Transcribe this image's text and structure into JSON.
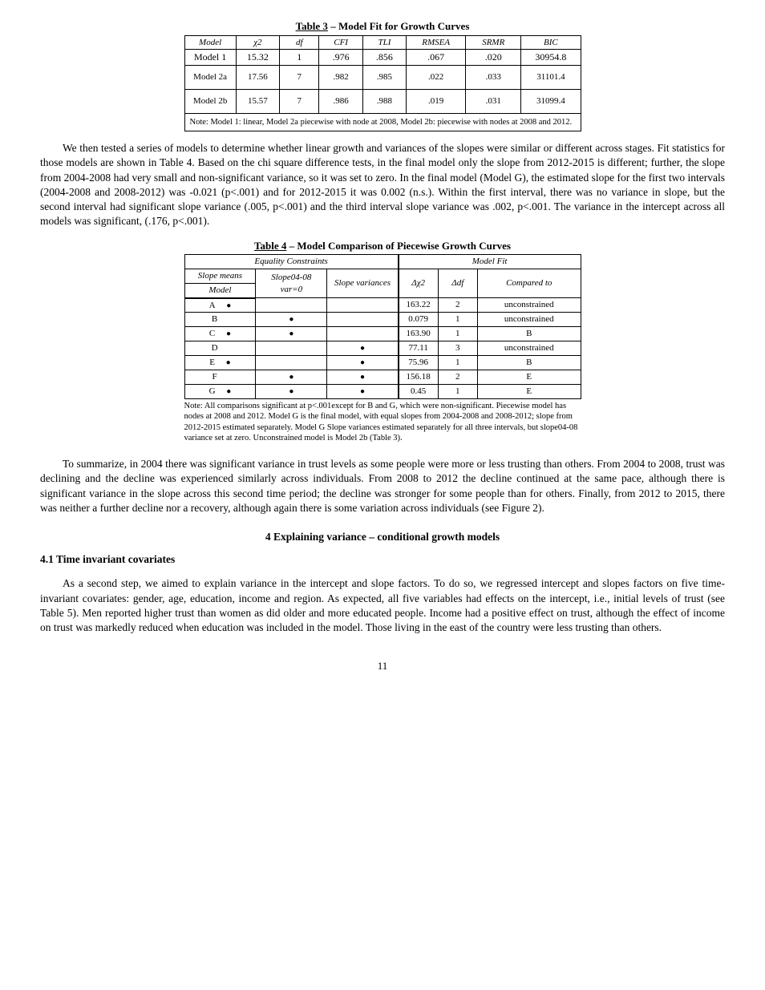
{
  "table3": {
    "title_prefix": "Table 3",
    "title_rest": " – Model Fit for Growth Curves",
    "header_row": [
      "Model",
      "χ2",
      "df",
      "CFI",
      "TLI",
      "RMSEA",
      "SRMR",
      "BIC"
    ],
    "row1": [
      "Model 1",
      "15.32",
      "1",
      ".976",
      ".856",
      ".067",
      ".020",
      "30954.8"
    ],
    "row2": [
      "Model 2a",
      "17.56",
      "7",
      ".982",
      ".985",
      ".022",
      ".033",
      "31101.4"
    ],
    "row3": [
      "Model 2b",
      "15.57",
      "7",
      ".986",
      ".988",
      ".019",
      ".031",
      "31099.4"
    ],
    "note": "Note: Model 1: linear, Model 2a piecewise with node at 2008, Model 2b: piecewise with nodes at 2008 and 2012."
  },
  "para1": "We then tested a series of models to determine whether linear growth and variances of the slopes were similar or different across stages. Fit statistics for those models are shown in Table 4. Based on the chi square difference tests, in the final model only the slope from 2012-2015 is different; further, the slope from 2004-2008 had very small and non-significant variance, so it was set to zero. In the final model (Model G), the estimated slope for the first two intervals (2004-2008 and 2008-2012) was -0.021 (p<.001) and for 2012-2015 it was 0.002 (n.s.). Within the first interval, there was no variance in slope, but the second interval had significant slope variance (.005, p<.001) and the third interval slope variance was .002, p<.001. The variance in the intercept across all models was significant, (.176, p<.001).",
  "table4": {
    "title_prefix": "Table 4",
    "title_rest": " – Model Comparison of Piecewise Growth Curves",
    "group_left": "Equality Constraints",
    "group_right": "Model Fit",
    "sub_left": [
      "Slope means",
      "Slope04-08 var=0",
      "Slope variances"
    ],
    "sub_right": [
      "Δχ2",
      "Δdf",
      "Compared to"
    ],
    "rows": [
      {
        "label": "A",
        "c": [
          true,
          false,
          false
        ],
        "r": [
          "163.22",
          "2",
          "unconstrained"
        ]
      },
      {
        "label": "B",
        "c": [
          false,
          true,
          false
        ],
        "r": [
          "0.079",
          "1",
          "unconstrained"
        ]
      },
      {
        "label": "C",
        "c": [
          true,
          true,
          false
        ],
        "r": [
          "163.90",
          "1",
          "B"
        ]
      },
      {
        "label": "D",
        "c": [
          false,
          false,
          true
        ],
        "r": [
          "77.11",
          "3",
          "unconstrained"
        ]
      },
      {
        "label": "E",
        "c": [
          true,
          false,
          true
        ],
        "r": [
          "75.96",
          "1",
          "B"
        ]
      },
      {
        "label": "F",
        "c": [
          false,
          true,
          true
        ],
        "r": [
          "156.18",
          "2",
          "E"
        ]
      },
      {
        "label": "G",
        "c": [
          true,
          true,
          true
        ],
        "r": [
          "0.45",
          "1",
          "E"
        ]
      }
    ],
    "footnote": "Note: All comparisons significant at p<.001except for B and G, which were non-significant. Piecewise model has nodes at 2008 and 2012. Model G is the final model, with equal slopes from 2004-2008 and 2008-2012; slope from 2012-2015 estimated separately. Model G Slope variances estimated separately for all three intervals, but slope04-08 variance set at zero. Unconstrained model is Model 2b (Table 3)."
  },
  "para2": "To summarize, in 2004 there was significant variance in trust levels as some people were more or less trusting than others. From 2004 to 2008, trust was declining and the decline was experienced similarly across individuals. From 2008 to 2012 the decline continued at the same pace, although there is significant variance in the slope across this second time period; the decline was stronger for some people than for others. Finally, from 2012 to 2015, there was neither a further decline nor a recovery, although again there is some variation across individuals (see Figure 2).",
  "section4_title": "4 Explaining variance – conditional growth models",
  "section41_title": "4.1 Time invariant covariates",
  "para3": "As a second step, we aimed to explain variance in the intercept and slope factors. To do so, we regressed intercept and slopes factors on five time-invariant covariates: gender, age, education, income and region. As expected, all five variables had effects on the intercept, i.e., initial levels of trust (see Table 5). Men reported higher trust than women as did older and more educated people. Income had a positive effect on trust, although the effect of income on trust was markedly reduced when education was included in the model. Those living in the east of the country were less trusting than others.",
  "page_number": "11"
}
